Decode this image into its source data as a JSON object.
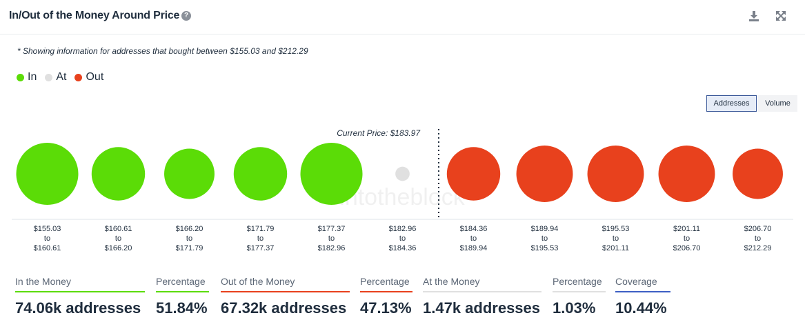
{
  "header": {
    "title": "In/Out of the Money Around Price",
    "help_icon": "question-circle-icon",
    "download_icon": "download-icon",
    "expand_icon": "expand-icon"
  },
  "note": "* Showing information for addresses that bought between $155.03 and $212.29",
  "legend": [
    {
      "label": "In",
      "color": "#5bdc07"
    },
    {
      "label": "At",
      "color": "#e0e0e0"
    },
    {
      "label": "Out",
      "color": "#e8411d"
    }
  ],
  "toggles": {
    "addresses": "Addresses",
    "volume": "Volume"
  },
  "watermark": "intotheblock",
  "chart_data": {
    "type": "scatter",
    "current_price_label": "Current Price: $183.97",
    "current_price_after_index": 5,
    "buckets": [
      {
        "from": "$155.03",
        "to": "$160.61",
        "status": "In",
        "size": 1.0
      },
      {
        "from": "$160.61",
        "to": "$166.20",
        "status": "In",
        "size": 0.86
      },
      {
        "from": "$166.20",
        "to": "$171.79",
        "status": "In",
        "size": 0.81
      },
      {
        "from": "$171.79",
        "to": "$177.37",
        "status": "In",
        "size": 0.86
      },
      {
        "from": "$177.37",
        "to": "$182.96",
        "status": "In",
        "size": 1.0
      },
      {
        "from": "$182.96",
        "to": "$184.36",
        "status": "At",
        "size": 0.23
      },
      {
        "from": "$184.36",
        "to": "$189.94",
        "status": "Out",
        "size": 0.86
      },
      {
        "from": "$189.94",
        "to": "$195.53",
        "status": "Out",
        "size": 0.91
      },
      {
        "from": "$195.53",
        "to": "$201.11",
        "status": "Out",
        "size": 0.91
      },
      {
        "from": "$201.11",
        "to": "$206.70",
        "status": "Out",
        "size": 0.91
      },
      {
        "from": "$206.70",
        "to": "$212.29",
        "status": "Out",
        "size": 0.81
      }
    ],
    "colors": {
      "In": "#5bdc07",
      "At": "#e0e0e0",
      "Out": "#e8411d"
    }
  },
  "stats": [
    {
      "label": "In the Money",
      "value": "74.06k addresses",
      "color": "#5bdc07"
    },
    {
      "label": "Percentage",
      "value": "51.84%",
      "color": "#5bdc07"
    },
    {
      "label": "Out of the Money",
      "value": "67.32k addresses",
      "color": "#e8411d"
    },
    {
      "label": "Percentage",
      "value": "47.13%",
      "color": "#e8411d"
    },
    {
      "label": "At the Money",
      "value": "1.47k addresses",
      "color": "#e0e0e0"
    },
    {
      "label": "Percentage",
      "value": "1.03%",
      "color": "#e0e0e0"
    },
    {
      "label": "Coverage",
      "value": "10.44%",
      "color": "#3d5fc4"
    }
  ]
}
